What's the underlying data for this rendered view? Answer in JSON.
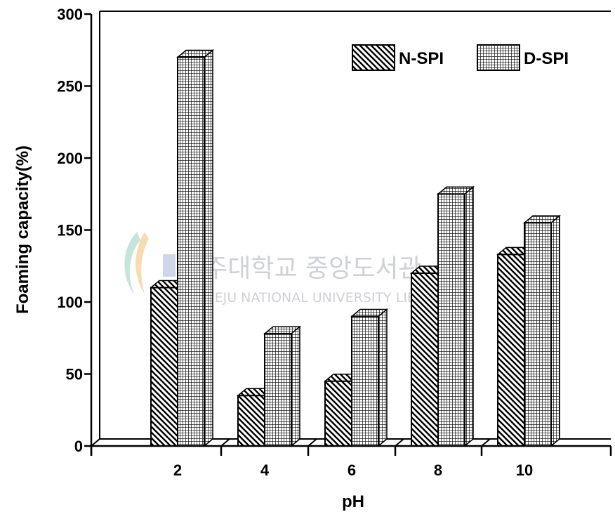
{
  "chart_data": {
    "type": "bar",
    "categories": [
      "2",
      "4",
      "6",
      "8",
      "10"
    ],
    "series": [
      {
        "name": "N-SPI",
        "values": [
          110,
          35,
          45,
          120,
          133
        ]
      },
      {
        "name": "D-SPI",
        "values": [
          270,
          78,
          90,
          175,
          155
        ]
      }
    ],
    "xlabel": "pH",
    "ylabel": "Foaming capacity(%)",
    "ylim": [
      0,
      300
    ],
    "yticks": [
      "0",
      "50",
      "100",
      "150",
      "200",
      "250",
      "300"
    ],
    "legend_position": "top-right",
    "grid": false,
    "colors": {
      "n_spi": "#000000",
      "d_spi": "#000000",
      "background": "#ffffff"
    },
    "patterns": {
      "n_spi": "diagonal-hatch",
      "d_spi": "square-grid"
    },
    "watermark": {
      "korean": "제주대학교 중앙도서관",
      "english": "JEJU NATIONAL UNIVERSITY LIBRARY"
    }
  }
}
